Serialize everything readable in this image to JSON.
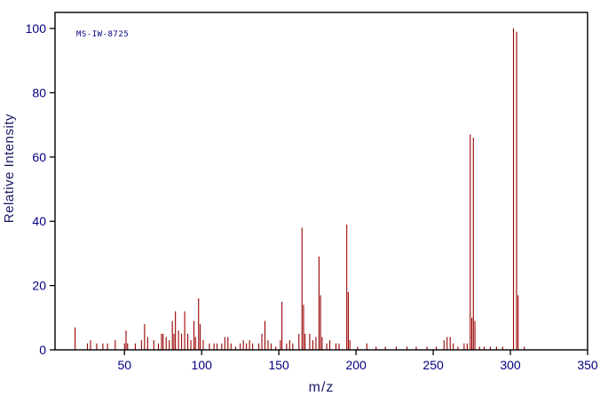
{
  "chart_data": {
    "type": "bar",
    "subtype": "mass-spectrum",
    "annotation": "MS-IW-8725",
    "xlabel": "m/z",
    "ylabel": "Relative Intensity",
    "xlim": [
      5,
      350
    ],
    "ylim": [
      0,
      105
    ],
    "x_ticks": [
      50,
      100,
      150,
      200,
      250,
      300,
      350
    ],
    "y_ticks": [
      0,
      20,
      40,
      60,
      80,
      100
    ],
    "grid": false,
    "legend": "none",
    "peak_color": "#990000",
    "axis_text_color": "#000080",
    "frame_color": "#000000",
    "peaks": [
      [
        18,
        7
      ],
      [
        26,
        2
      ],
      [
        28,
        3
      ],
      [
        32,
        2
      ],
      [
        36,
        2
      ],
      [
        39,
        2
      ],
      [
        44,
        3
      ],
      [
        50,
        2
      ],
      [
        51,
        6
      ],
      [
        52,
        2
      ],
      [
        57,
        2
      ],
      [
        61,
        3
      ],
      [
        63,
        8
      ],
      [
        65,
        4
      ],
      [
        69,
        3
      ],
      [
        72,
        2
      ],
      [
        74,
        5
      ],
      [
        75,
        5
      ],
      [
        77,
        4
      ],
      [
        79,
        3
      ],
      [
        81,
        9
      ],
      [
        82,
        5
      ],
      [
        83,
        12
      ],
      [
        85,
        6
      ],
      [
        87,
        5
      ],
      [
        89,
        12
      ],
      [
        91,
        5
      ],
      [
        93,
        3
      ],
      [
        95,
        9
      ],
      [
        96,
        4
      ],
      [
        98,
        16
      ],
      [
        99,
        8
      ],
      [
        101,
        3
      ],
      [
        105,
        2
      ],
      [
        108,
        2
      ],
      [
        110,
        2
      ],
      [
        113,
        2
      ],
      [
        115,
        4
      ],
      [
        117,
        4
      ],
      [
        119,
        2
      ],
      [
        122,
        1
      ],
      [
        125,
        2
      ],
      [
        127,
        3
      ],
      [
        129,
        2
      ],
      [
        131,
        3
      ],
      [
        133,
        2
      ],
      [
        137,
        2
      ],
      [
        139,
        5
      ],
      [
        141,
        9
      ],
      [
        143,
        3
      ],
      [
        145,
        2
      ],
      [
        148,
        1
      ],
      [
        151,
        3
      ],
      [
        152,
        15
      ],
      [
        155,
        2
      ],
      [
        157,
        3
      ],
      [
        159,
        2
      ],
      [
        163,
        5
      ],
      [
        165,
        38
      ],
      [
        166,
        14
      ],
      [
        167,
        5
      ],
      [
        170,
        5
      ],
      [
        172,
        3
      ],
      [
        174,
        4
      ],
      [
        176,
        29
      ],
      [
        177,
        17
      ],
      [
        178,
        4
      ],
      [
        181,
        2
      ],
      [
        183,
        3
      ],
      [
        187,
        2
      ],
      [
        189,
        2
      ],
      [
        194,
        39
      ],
      [
        195,
        18
      ],
      [
        196,
        3
      ],
      [
        201,
        1
      ],
      [
        207,
        2
      ],
      [
        213,
        1
      ],
      [
        219,
        1
      ],
      [
        226,
        1
      ],
      [
        233,
        1
      ],
      [
        239,
        1
      ],
      [
        246,
        1
      ],
      [
        252,
        1
      ],
      [
        257,
        3
      ],
      [
        259,
        4
      ],
      [
        261,
        4
      ],
      [
        263,
        2
      ],
      [
        266,
        1
      ],
      [
        270,
        2
      ],
      [
        272,
        2
      ],
      [
        274,
        67
      ],
      [
        275,
        10
      ],
      [
        276,
        66
      ],
      [
        277,
        9
      ],
      [
        280,
        1
      ],
      [
        283,
        1
      ],
      [
        287,
        1
      ],
      [
        291,
        1
      ],
      [
        295,
        1
      ],
      [
        302,
        100
      ],
      [
        304,
        99
      ],
      [
        305,
        17
      ],
      [
        309,
        1
      ]
    ]
  }
}
